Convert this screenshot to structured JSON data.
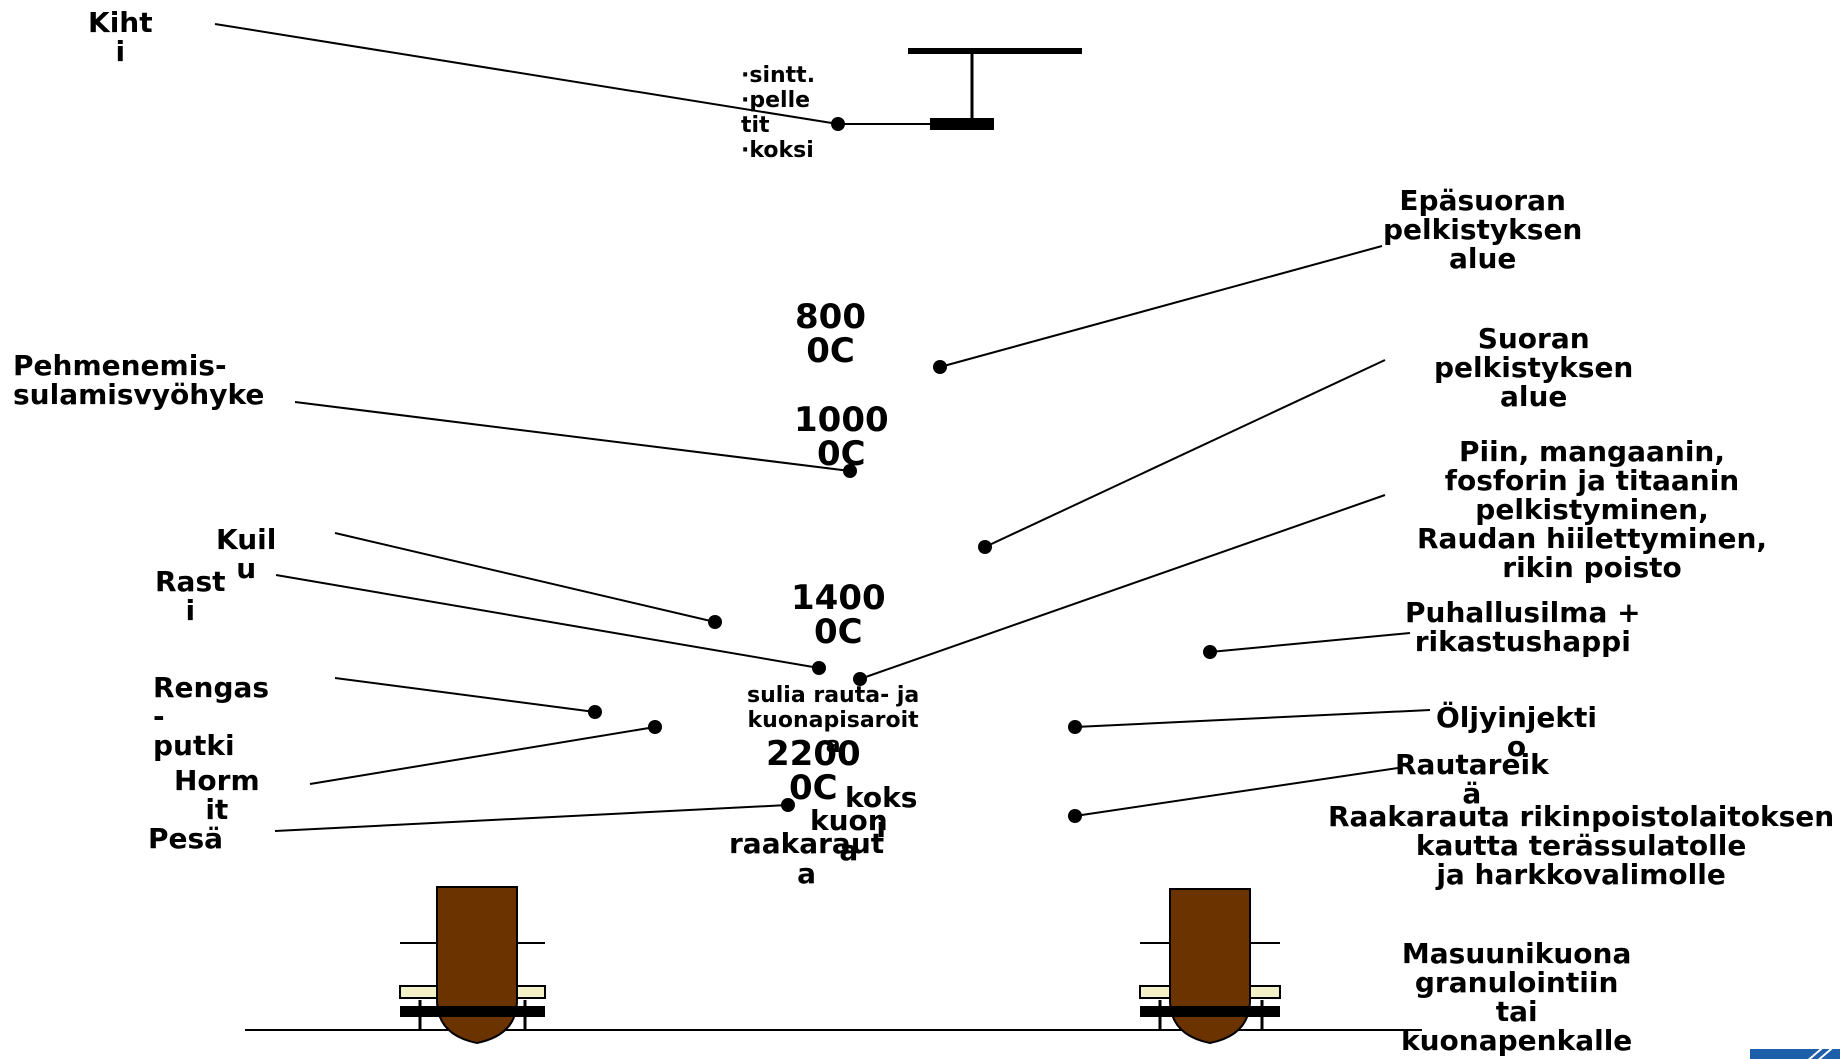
{
  "labels": {
    "kihti": "Kiht\ni",
    "top_materials": "·sintt.\n·pelle\ntit\n·koksi",
    "epasuoran": "Epäsuoran\npelkistyksen\nalue",
    "t800": "800\n0C",
    "pehmenemis": "Pehmenemis-\nsulamisvyöhyke",
    "suoran": "Suoran\npelkistyksen\nalue",
    "t1000": "1000\n0C",
    "piin": "Piin, mangaanin,\nfosforin ja titaanin\npelkistyminen,\nRaudan hiilettyminen,\nrikin poisto",
    "kuilu": "Kuil\nu",
    "rasti": "Rast\ni",
    "t1400": "1400\n0C",
    "puhallus": "Puhallusilma +\nrikastushappi",
    "sulia": "sulia rauta- ja\nkuonapisaroit\na",
    "rengasputki": "Rengas\n-\nputki",
    "oljy": "Öljyinjekti\no",
    "t2200": "2200\n0C",
    "hormit": "Horm\nit",
    "rautareika": "Rautareik\nä",
    "koksi": "koks\ni",
    "kuona": "kuon\na",
    "pesa": "Pesä",
    "raakarauta": "raakaraut\na",
    "raakarauta_route": "Raakarauta rikinpoistolaitoksen\nkautta terässulatolle\nja harkkovalimolle",
    "masuunikuona": "Masuunikuona\ngranulointiin\ntai\nkuonapenkalle"
  },
  "colors": {
    "ladle": "#6b3300",
    "rail_tie": "#f3f1c8",
    "logo_blue": "#1d5fa8"
  }
}
